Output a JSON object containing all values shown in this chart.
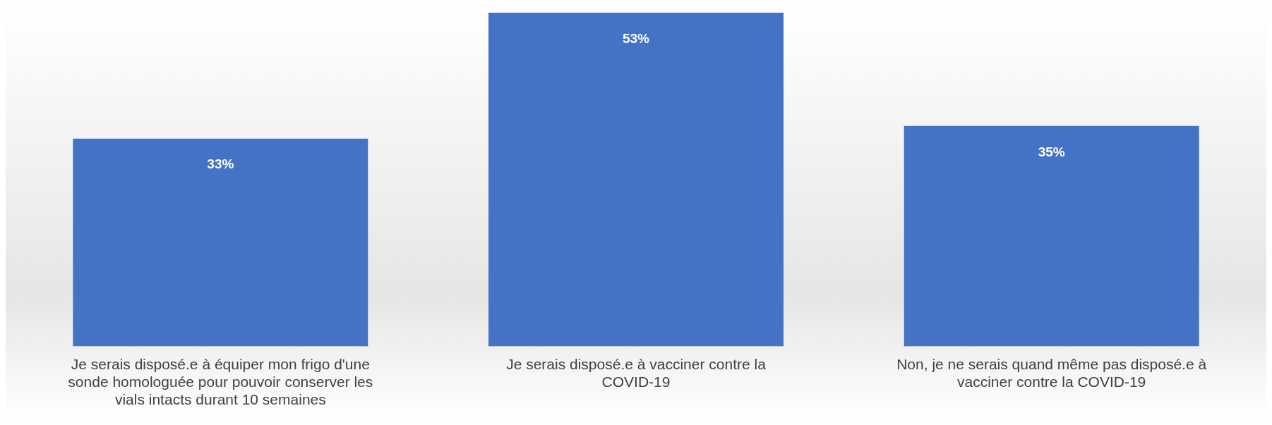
{
  "chart_data": {
    "type": "bar",
    "categories": [
      "Je serais disposé.e à équiper mon frigo d'une sonde homologuée pour pouvoir conserver les vials intacts durant 10 semaines",
      "Je serais disposé.e à vacciner contre la COVID-19",
      "Non, je ne serais quand même pas disposé.e à vacciner contre la COVID-19"
    ],
    "values": [
      33,
      53,
      35
    ],
    "value_labels": [
      "33%",
      "53%",
      "35%"
    ],
    "color": "#4472c4",
    "grid": false,
    "legend": false
  }
}
